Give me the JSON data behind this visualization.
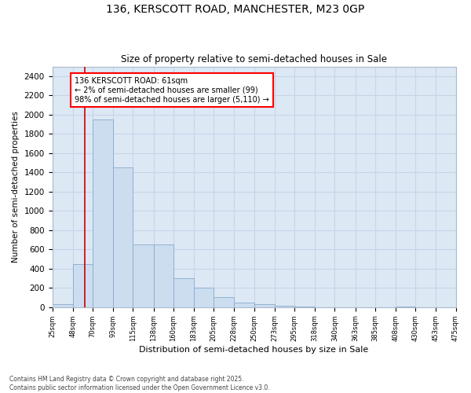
{
  "title": "136, KERSCOTT ROAD, MANCHESTER, M23 0GP",
  "subtitle": "Size of property relative to semi-detached houses in Sale",
  "xlabel": "Distribution of semi-detached houses by size in Sale",
  "ylabel": "Number of semi-detached properties",
  "annotation_title": "136 KERSCOTT ROAD: 61sqm",
  "annotation_line1": "← 2% of semi-detached houses are smaller (99)",
  "annotation_line2": "98% of semi-detached houses are larger (5,110) →",
  "property_size": 61,
  "bin_edges": [
    25,
    48,
    70,
    93,
    115,
    138,
    160,
    183,
    205,
    228,
    250,
    273,
    295,
    318,
    340,
    363,
    385,
    408,
    430,
    453,
    475
  ],
  "bar_values": [
    30,
    450,
    1950,
    1450,
    650,
    650,
    300,
    200,
    100,
    50,
    30,
    10,
    5,
    0,
    0,
    0,
    0,
    5,
    0,
    0
  ],
  "bar_color": "#ccddf0",
  "bar_edge_color": "#88aacc",
  "vline_color": "#cc0000",
  "vline_x": 61,
  "ylim": [
    0,
    2500
  ],
  "yticks": [
    0,
    200,
    400,
    600,
    800,
    1000,
    1200,
    1400,
    1600,
    1800,
    2000,
    2200,
    2400
  ],
  "grid_color": "#c8d4e8",
  "background_color": "#dde8f5",
  "footer_line1": "Contains HM Land Registry data © Crown copyright and database right 2025.",
  "footer_line2": "Contains public sector information licensed under the Open Government Licence v3.0."
}
